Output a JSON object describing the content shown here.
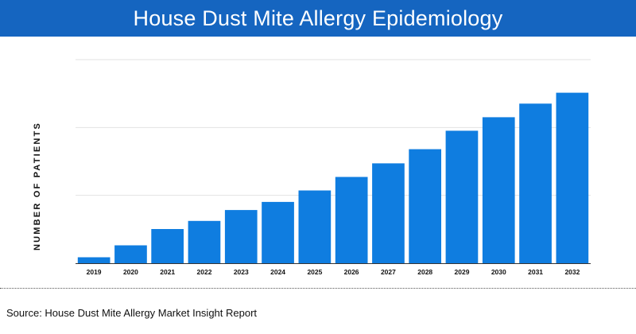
{
  "header": {
    "title": "House Dust Mite Allergy Epidemiology",
    "background_color": "#1565c0"
  },
  "footer": {
    "source": "Source: House Dust Mite Allergy Market Insight Report"
  },
  "chart_data": {
    "type": "bar",
    "title": "House Dust Mite Allergy Epidemiology",
    "xlabel": "",
    "ylabel": "NUMBER OF PATIENTS",
    "categories": [
      "2019",
      "2020",
      "2021",
      "2022",
      "2023",
      "2024",
      "2025",
      "2026",
      "2027",
      "2028",
      "2029",
      "2030",
      "2031",
      "2032"
    ],
    "values": [
      2.2,
      6.6,
      12.6,
      15.6,
      19.6,
      22.6,
      26.8,
      31.8,
      36.8,
      42.0,
      48.8,
      53.8,
      58.8,
      62.8
    ],
    "ylim": [
      0,
      75
    ],
    "ytick_count": 3,
    "grid": true,
    "bar_color": "#0f7de0",
    "grid_color": "#e2e2e2",
    "axis_color": "#333333",
    "legend": "none"
  }
}
